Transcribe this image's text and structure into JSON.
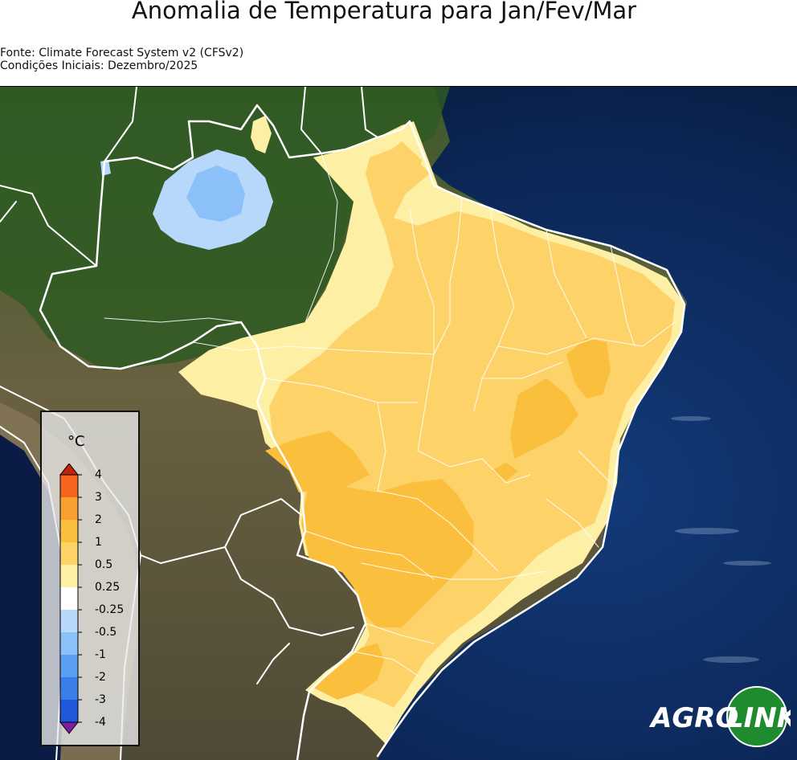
{
  "title": "Anomalia de Temperatura para Jan/Fev/Mar",
  "source_line1": "Fonte: Climate Forecast System v2 (CFSv2)",
  "source_line2": "Condições Iniciais: Dezembro/2025",
  "legend": {
    "unit": "°C",
    "labels": [
      "4",
      "3",
      "2",
      "1",
      "0.5",
      "0.25",
      "-0.25",
      "-0.5",
      "-1",
      "-2",
      "-3",
      "-4"
    ],
    "colors": [
      "#c4220e",
      "#f4641e",
      "#f8a130",
      "#fbbf3e",
      "#fdd268",
      "#fdefa4",
      "#ffffff",
      "#b7d8fa",
      "#8cc0f8",
      "#5a9ef2",
      "#3a7fe8",
      "#1f58d8",
      "#7b1fa2"
    ]
  },
  "brand": {
    "part1": "AGRO",
    "part2": "LINK"
  },
  "colors": {
    "ocean": "#0b1f4a",
    "land_green": "#3f6b2a",
    "land_brown": "#6b5a40",
    "boundary": "#ffffff"
  }
}
